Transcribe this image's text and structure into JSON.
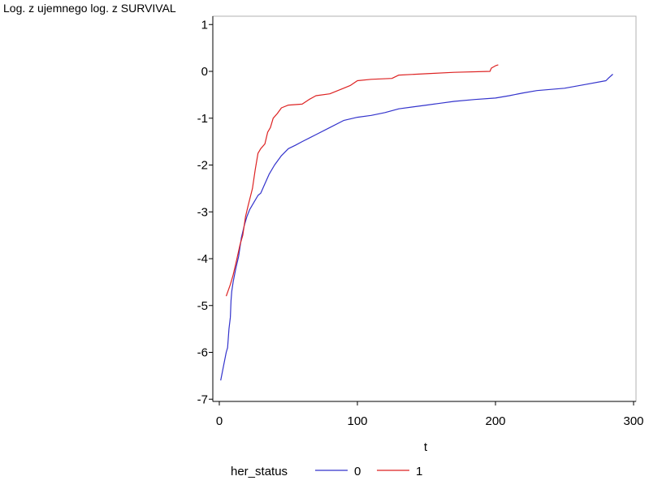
{
  "chart_data": {
    "type": "line",
    "title": "",
    "ylabel": "Log. z ujemnego log. z SURVIVAL",
    "xlabel": "t",
    "xlim": [
      0,
      300
    ],
    "ylim": [
      -7,
      1
    ],
    "x_ticks": [
      0,
      100,
      200,
      300
    ],
    "y_ticks": [
      1,
      0,
      -1,
      -2,
      -3,
      -4,
      -5,
      -6,
      -7
    ],
    "x_tick_labels": [
      "0",
      "100",
      "200",
      "300"
    ],
    "y_tick_labels": [
      "1",
      "0",
      "-1",
      "-2",
      "-3",
      "-4",
      "-5",
      "-6",
      "-7"
    ],
    "grid": false,
    "legend": {
      "title": "her_status",
      "position": "bottom"
    },
    "series": [
      {
        "name": "0",
        "color": "#3333cc",
        "points": [
          [
            1,
            -6.6
          ],
          [
            3,
            -6.3
          ],
          [
            5,
            -6.0
          ],
          [
            6,
            -5.9
          ],
          [
            7,
            -5.5
          ],
          [
            8,
            -5.25
          ],
          [
            8.5,
            -4.9
          ],
          [
            9,
            -4.7
          ],
          [
            10,
            -4.5
          ],
          [
            12,
            -4.2
          ],
          [
            14,
            -3.95
          ],
          [
            16,
            -3.55
          ],
          [
            18,
            -3.3
          ],
          [
            20,
            -3.1
          ],
          [
            22,
            -2.95
          ],
          [
            25,
            -2.8
          ],
          [
            28,
            -2.65
          ],
          [
            30,
            -2.6
          ],
          [
            33,
            -2.4
          ],
          [
            36,
            -2.2
          ],
          [
            40,
            -2.0
          ],
          [
            45,
            -1.8
          ],
          [
            50,
            -1.65
          ],
          [
            55,
            -1.58
          ],
          [
            60,
            -1.5
          ],
          [
            70,
            -1.35
          ],
          [
            80,
            -1.2
          ],
          [
            90,
            -1.05
          ],
          [
            100,
            -0.98
          ],
          [
            110,
            -0.94
          ],
          [
            120,
            -0.88
          ],
          [
            130,
            -0.8
          ],
          [
            140,
            -0.76
          ],
          [
            150,
            -0.72
          ],
          [
            160,
            -0.68
          ],
          [
            170,
            -0.64
          ],
          [
            185,
            -0.6
          ],
          [
            200,
            -0.57
          ],
          [
            210,
            -0.52
          ],
          [
            220,
            -0.46
          ],
          [
            230,
            -0.41
          ],
          [
            250,
            -0.36
          ],
          [
            265,
            -0.28
          ],
          [
            280,
            -0.2
          ],
          [
            282,
            -0.14
          ],
          [
            285,
            -0.06
          ]
        ]
      },
      {
        "name": "1",
        "color": "#dd2222",
        "points": [
          [
            5,
            -4.8
          ],
          [
            8,
            -4.55
          ],
          [
            10,
            -4.35
          ],
          [
            12,
            -4.1
          ],
          [
            15,
            -3.7
          ],
          [
            17,
            -3.5
          ],
          [
            19,
            -3.1
          ],
          [
            21,
            -2.85
          ],
          [
            24,
            -2.5
          ],
          [
            26,
            -2.1
          ],
          [
            28,
            -1.75
          ],
          [
            30,
            -1.65
          ],
          [
            33,
            -1.55
          ],
          [
            35,
            -1.3
          ],
          [
            37,
            -1.2
          ],
          [
            39,
            -1.0
          ],
          [
            42,
            -0.9
          ],
          [
            45,
            -0.78
          ],
          [
            50,
            -0.72
          ],
          [
            60,
            -0.7
          ],
          [
            65,
            -0.6
          ],
          [
            70,
            -0.52
          ],
          [
            80,
            -0.48
          ],
          [
            90,
            -0.36
          ],
          [
            95,
            -0.3
          ],
          [
            100,
            -0.2
          ],
          [
            110,
            -0.17
          ],
          [
            125,
            -0.15
          ],
          [
            130,
            -0.08
          ],
          [
            150,
            -0.05
          ],
          [
            170,
            -0.02
          ],
          [
            196,
            0.0
          ],
          [
            197,
            0.07
          ],
          [
            200,
            0.12
          ],
          [
            202,
            0.14
          ]
        ]
      }
    ]
  }
}
